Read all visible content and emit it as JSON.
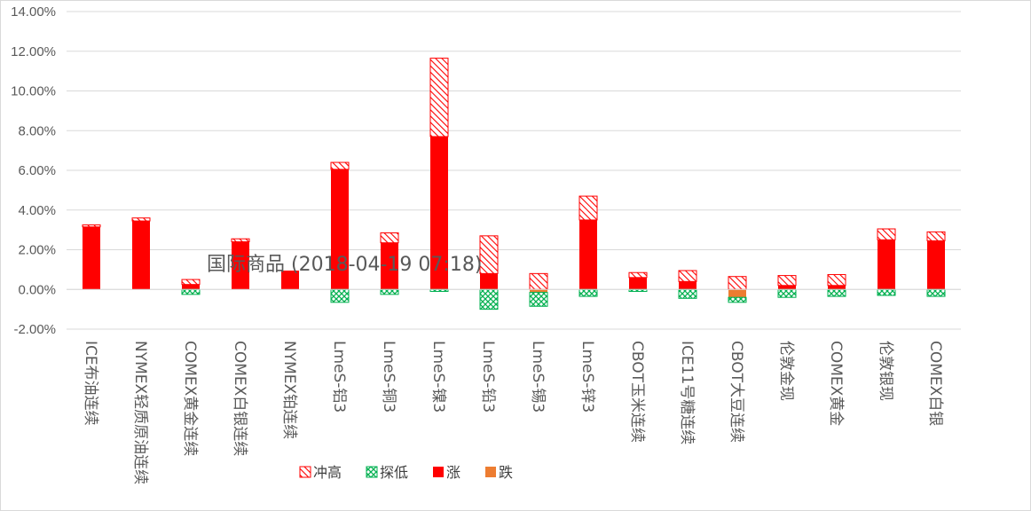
{
  "chart_data": {
    "type": "bar",
    "stacked": true,
    "title": "国际商品 (2018-04-19 07:18)",
    "ylabel": "",
    "xlabel": "",
    "ylim": [
      -2,
      14
    ],
    "yticks": [
      "-2.00%",
      "0.00%",
      "2.00%",
      "4.00%",
      "6.00%",
      "8.00%",
      "10.00%",
      "12.00%",
      "14.00%"
    ],
    "grid": true,
    "legend_position": "bottom",
    "categories": [
      "ICE布油连续",
      "NYMEX轻质原油连续",
      "COMEX黄金连续",
      "COMEX白银连续",
      "NYMEX铂连续",
      "LmeS-铝3",
      "LmeS-铜3",
      "LmeS-镍3",
      "LmeS-铅3",
      "LmeS-锡3",
      "LmeS-锌3",
      "CBOT玉米连续",
      "ICE11号糖连续",
      "CBOT大豆连续",
      "伦敦金现",
      "COMEX黄金",
      "伦敦银现",
      "COMEX白银"
    ],
    "series": [
      {
        "name": "涨",
        "color": "#ff0000",
        "pattern": "solid",
        "values": [
          3.15,
          3.45,
          0.25,
          2.4,
          0.95,
          6.05,
          2.35,
          7.7,
          0.8,
          0,
          3.5,
          0.6,
          0.4,
          0,
          0.2,
          0.2,
          2.5,
          2.45
        ]
      },
      {
        "name": "冲高",
        "color": "#ff0000",
        "pattern": "hatch-up",
        "values": [
          0.1,
          0.15,
          0.25,
          0.15,
          0,
          0.35,
          0.5,
          3.95,
          1.9,
          0.8,
          1.2,
          0.25,
          0.55,
          0.65,
          0.5,
          0.55,
          0.55,
          0.45
        ]
      },
      {
        "name": "跌",
        "color": "#ed7d31",
        "pattern": "solid",
        "values": [
          0,
          0,
          0,
          0,
          0,
          0,
          0,
          0,
          0,
          -0.15,
          0,
          0,
          0,
          -0.4,
          0,
          0,
          0,
          0
        ]
      },
      {
        "name": "探低",
        "color": "#00b050",
        "pattern": "hatch-cross",
        "values": [
          0,
          0,
          -0.25,
          0,
          0,
          -0.65,
          -0.25,
          -0.1,
          -1.0,
          -0.7,
          -0.35,
          -0.1,
          -0.45,
          -0.25,
          -0.4,
          -0.35,
          -0.3,
          -0.35
        ]
      }
    ],
    "legend_order": [
      "冲高",
      "探低",
      "涨",
      "跌"
    ]
  }
}
